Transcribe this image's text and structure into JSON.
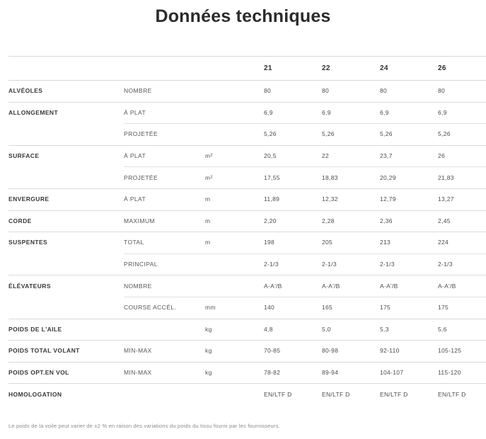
{
  "page": {
    "title": "Données techniques",
    "footnote": "Le poids de la voile peut varier de ±2 % en raison des variations du poids du tissu fourni par les fournisseurs."
  },
  "table": {
    "size_headers": [
      "21",
      "22",
      "24",
      "26"
    ],
    "rows": [
      {
        "group": "ALVÉOLES",
        "label": "NOMBRE",
        "unit": "",
        "separator": "full",
        "values": [
          "80",
          "80",
          "80",
          "80"
        ]
      },
      {
        "group": "ALLONGEMENT",
        "label": "À PLAT",
        "unit": "",
        "separator": "full",
        "values": [
          "6,9",
          "6,9",
          "6,9",
          "6,9"
        ]
      },
      {
        "group": "",
        "label": "PROJETÉE",
        "unit": "",
        "separator": "inset",
        "values": [
          "5,26",
          "5,26",
          "5,26",
          "5,26"
        ]
      },
      {
        "group": "SURFACE",
        "label": "À PLAT",
        "unit": "m²",
        "separator": "full",
        "values": [
          "20,5",
          "22",
          "23,7",
          "26"
        ]
      },
      {
        "group": "",
        "label": "PROJETÉE",
        "unit": "m²",
        "separator": "inset",
        "values": [
          "17,55",
          "18,83",
          "20,29",
          "21,83"
        ]
      },
      {
        "group": "ENVERGURE",
        "label": "À PLAT",
        "unit": "m",
        "separator": "full",
        "values": [
          "11,89",
          "12,32",
          "12,79",
          "13,27"
        ]
      },
      {
        "group": "CORDE",
        "label": "MAXIMUM",
        "unit": "m",
        "separator": "full",
        "values": [
          "2,20",
          "2,28",
          "2,36",
          "2,45"
        ]
      },
      {
        "group": "SUSPENTES",
        "label": "TOTAL",
        "unit": "m",
        "separator": "full",
        "values": [
          "198",
          "205",
          "213",
          "224"
        ]
      },
      {
        "group": "",
        "label": "PRINCIPAL",
        "unit": "",
        "separator": "inset",
        "values": [
          "2-1/3",
          "2-1/3",
          "2-1/3",
          "2-1/3"
        ]
      },
      {
        "group": "ÉLÉVATEURS",
        "label": "NOMBRE",
        "unit": "",
        "separator": "full",
        "values": [
          "A-A'/B",
          "A-A'/B",
          "A-A'/B",
          "A-A'/B"
        ]
      },
      {
        "group": "",
        "label": "COURSE ACCÉL.",
        "unit": "mm",
        "separator": "inset",
        "values": [
          "140",
          "165",
          "175",
          "175"
        ]
      },
      {
        "group": "POIDS DE L'AILE",
        "label": "",
        "unit": "kg",
        "separator": "full",
        "values": [
          "4,8",
          "5,0",
          "5,3",
          "5,6"
        ]
      },
      {
        "group": "POIDS TOTAL VOLANT",
        "label": "MIN-MAX",
        "unit": "kg",
        "separator": "full",
        "values": [
          "70-85",
          "80-98",
          "92-110",
          "105-125"
        ]
      },
      {
        "group": "POIDS OPT.EN VOL",
        "label": "MIN-MAX",
        "unit": "kg",
        "separator": "full",
        "values": [
          "78-82",
          "89-94",
          "104-107",
          "115-120"
        ]
      },
      {
        "group": "HOMOLOGATION",
        "label": "",
        "unit": "",
        "separator": "full",
        "values": [
          "EN/LTF D",
          "EN/LTF D",
          "EN/LTF D",
          "EN/LTF D"
        ]
      }
    ]
  }
}
